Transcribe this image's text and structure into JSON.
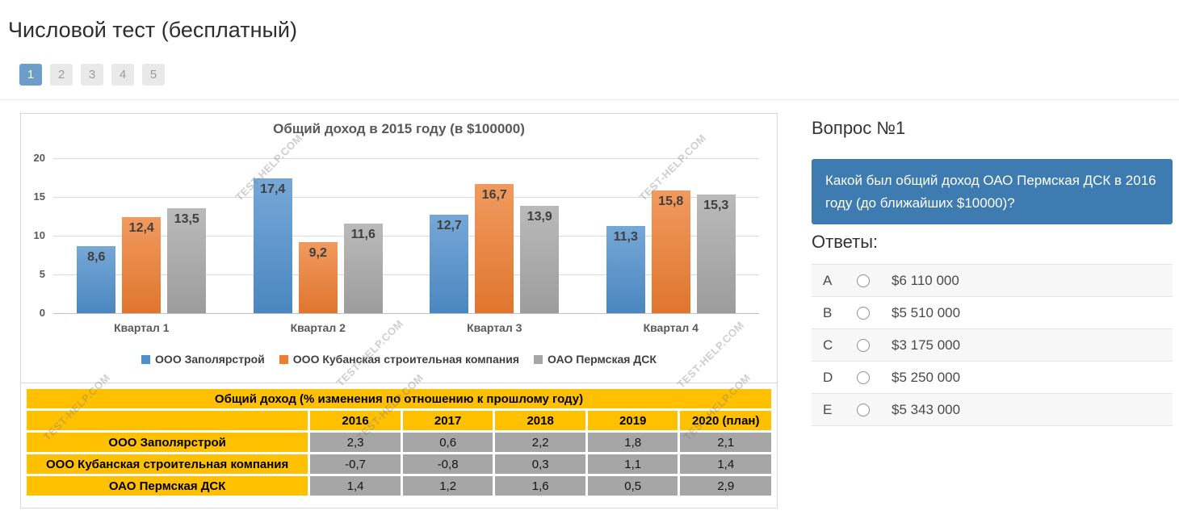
{
  "page": {
    "title": "Числовой тест (бесплатный)",
    "pagination": [
      "1",
      "2",
      "3",
      "4",
      "5"
    ],
    "active_page": "1"
  },
  "watermark": "TEST-HELP.COM",
  "chart_data": {
    "type": "bar",
    "title": "Общий доход в 2015 году (в $100000)",
    "categories": [
      "Квартал 1",
      "Квартал 2",
      "Квартал 3",
      "Квартал 4"
    ],
    "series": [
      {
        "name": "ООО Заполярстрой",
        "color": "#4f8fcb",
        "values": [
          8.6,
          17.4,
          12.7,
          11.3
        ]
      },
      {
        "name": "ООО Кубанская строительная компания",
        "color": "#ed7d31",
        "values": [
          12.4,
          9.2,
          16.7,
          15.8
        ]
      },
      {
        "name": "ОАО Пермская ДСК",
        "color": "#a6a6a6",
        "values": [
          13.5,
          11.6,
          13.9,
          15.3
        ]
      }
    ],
    "ylim": [
      0,
      20
    ],
    "y_ticks": [
      0,
      5,
      10,
      15,
      20
    ],
    "grid": true,
    "legend_position": "bottom",
    "value_labels": true,
    "decimal_separator": ","
  },
  "table_data": {
    "type": "table",
    "title": "Общий доход (% изменения по отношению к прошлому году)",
    "col_headers": [
      "",
      "2016",
      "2017",
      "2018",
      "2019",
      "2020 (план)"
    ],
    "rows": [
      {
        "label": "ООО Заполярстрой",
        "values": [
          "2,3",
          "0,6",
          "2,2",
          "1,8",
          "2,1"
        ]
      },
      {
        "label": "ООО Кубанская строительная компания",
        "values": [
          "-0,7",
          "-0,8",
          "0,3",
          "1,1",
          "1,4"
        ]
      },
      {
        "label": "ОАО Пермская ДСК",
        "values": [
          "1,4",
          "1,2",
          "1,6",
          "0,5",
          "2,9"
        ]
      }
    ]
  },
  "question": {
    "heading": "Вопрос №1",
    "text": "Какой был общий доход ОАО Пермская ДСК в 2016 году (до ближайших $10000)?",
    "answers_heading": "Ответы:",
    "options": [
      {
        "letter": "A",
        "value": "$6 110 000"
      },
      {
        "letter": "B",
        "value": "$5 510 000"
      },
      {
        "letter": "C",
        "value": "$3 175 000"
      },
      {
        "letter": "D",
        "value": "$5 250 000"
      },
      {
        "letter": "E",
        "value": "$5 343 000"
      }
    ]
  },
  "colors": {
    "active_page_bg": "#6d9ec9",
    "question_box_bg": "#3e7bb1",
    "table_header_bg": "#ffc000",
    "table_value_bg": "#a6a6a6"
  }
}
